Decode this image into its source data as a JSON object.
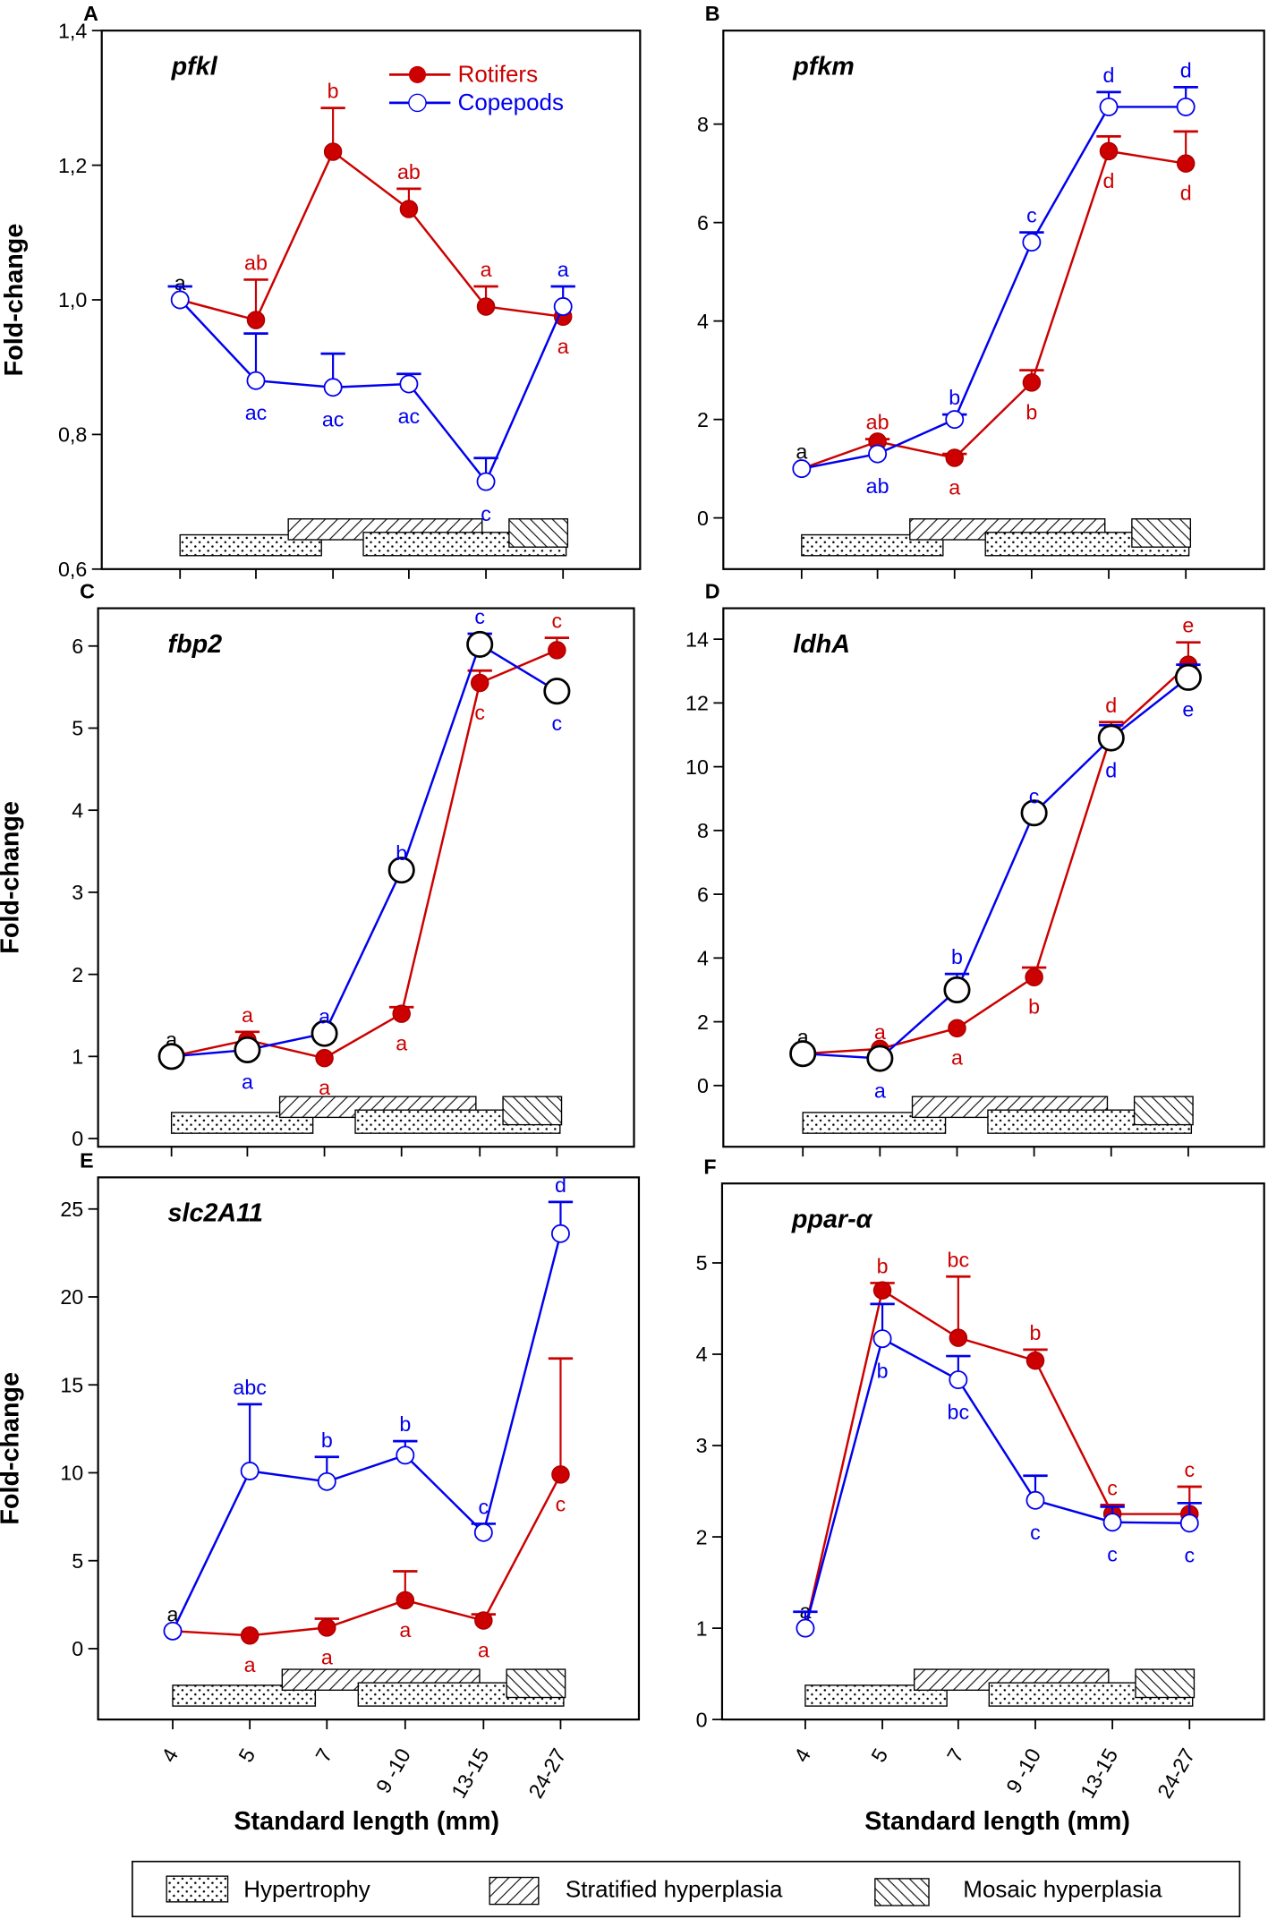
{
  "colors": {
    "rotifers": "#cc0000",
    "copepods": "#0000ee",
    "neutral": "#000000"
  },
  "legend": {
    "rotifers": "Rotifers",
    "copepods": "Copepods"
  },
  "x_axis_label": "Standard length (mm)",
  "y_axis_label": "Fold-change",
  "histology_legend": [
    "Hypertrophy",
    "Stratified hyperplasia",
    "Mosaic hyperplasia"
  ],
  "chart_data": [
    {
      "type": "line",
      "panel": "A",
      "title": "pfkl",
      "categories": [
        "4",
        "5",
        "7",
        "9 -10",
        "13-15",
        "24-27"
      ],
      "ylim": [
        0.6,
        1.4
      ],
      "yticks": [
        0.6,
        0.8,
        1.0,
        1.2,
        1.4
      ],
      "ytick_labels": [
        "0,6",
        "0,8",
        "1,0",
        "1,2",
        "1,4"
      ],
      "show_y_label": true,
      "show_x_labels": false,
      "legend": "top-right",
      "copepod_marker": "open-blue",
      "series": [
        {
          "name": "Rotifers",
          "values": [
            1.0,
            0.97,
            1.22,
            1.135,
            0.99,
            0.975
          ],
          "err_top": [
            null,
            1.03,
            1.285,
            1.165,
            1.02,
            null
          ],
          "letters": [
            "a",
            "ab",
            "b",
            "ab",
            "a",
            "a"
          ]
        },
        {
          "name": "Copepods",
          "values": [
            1.0,
            0.88,
            0.87,
            0.875,
            0.73,
            0.99
          ],
          "err_top": [
            1.02,
            0.95,
            0.92,
            0.89,
            0.765,
            1.02
          ],
          "letters": [
            "",
            "ac",
            "ac",
            "ac",
            "c",
            "a"
          ]
        }
      ]
    },
    {
      "type": "line",
      "panel": "B",
      "title": "pfkm",
      "categories": [
        "4",
        "5",
        "7",
        "9 -10",
        "13-15",
        "24-27"
      ],
      "ylim": [
        -1.04,
        9.9
      ],
      "yticks": [
        0,
        2,
        4,
        6,
        8
      ],
      "ytick_labels": [
        "0",
        "2",
        "4",
        "6",
        "8"
      ],
      "show_y_label": false,
      "show_x_labels": false,
      "copepod_marker": "open-blue",
      "series": [
        {
          "name": "Rotifers",
          "values": [
            1.0,
            1.55,
            1.22,
            2.75,
            7.45,
            7.2
          ],
          "err_top": [
            null,
            1.6,
            1.3,
            3.0,
            7.75,
            7.85
          ],
          "letters": [
            "a",
            "ab",
            "a",
            "b",
            "d",
            "d"
          ]
        },
        {
          "name": "Copepods",
          "values": [
            1.0,
            1.3,
            2.0,
            5.6,
            8.35,
            8.35
          ],
          "err_top": [
            null,
            null,
            2.1,
            5.8,
            8.65,
            8.75
          ],
          "letters": [
            "",
            "ab",
            "b",
            "c",
            "d",
            "d"
          ]
        }
      ]
    },
    {
      "type": "line",
      "panel": "C",
      "title": "fbp2",
      "categories": [
        "4",
        "5",
        "7",
        "9 -10",
        "13-15",
        "24-27"
      ],
      "ylim": [
        -0.1,
        6.46
      ],
      "yticks": [
        0,
        1,
        2,
        3,
        4,
        5,
        6
      ],
      "ytick_labels": [
        "0",
        "1",
        "2",
        "3",
        "4",
        "5",
        "6"
      ],
      "show_y_label": true,
      "show_x_labels": false,
      "copepod_marker": "open-black",
      "series": [
        {
          "name": "Rotifers",
          "values": [
            1.0,
            1.2,
            0.98,
            1.52,
            5.55,
            5.95
          ],
          "err_top": [
            null,
            1.3,
            null,
            1.6,
            5.7,
            6.1
          ],
          "letters": [
            "a",
            "a",
            "a",
            "a",
            "c",
            "c"
          ]
        },
        {
          "name": "Copepods",
          "values": [
            1.0,
            1.08,
            1.28,
            3.27,
            6.02,
            5.45
          ],
          "err_top": [
            null,
            null,
            null,
            null,
            6.15,
            null
          ],
          "letters": [
            "",
            "a",
            "a",
            "b",
            "c",
            "c"
          ]
        }
      ]
    },
    {
      "type": "line",
      "panel": "D",
      "title": "ldhA",
      "categories": [
        "4",
        "5",
        "7",
        "9 -10",
        "13-15",
        "24-27"
      ],
      "ylim": [
        -1.92,
        14.97
      ],
      "yticks": [
        0,
        2,
        4,
        6,
        8,
        10,
        12,
        14
      ],
      "ytick_labels": [
        "0",
        "2",
        "4",
        "6",
        "8",
        "10",
        "12",
        "14"
      ],
      "show_y_label": false,
      "show_x_labels": false,
      "copepod_marker": "open-black",
      "series": [
        {
          "name": "Rotifers",
          "values": [
            1.0,
            1.15,
            1.8,
            3.4,
            11.0,
            13.2
          ],
          "err_top": [
            null,
            null,
            null,
            3.7,
            11.4,
            13.9
          ],
          "letters": [
            "a",
            "a",
            "a",
            "b",
            "d",
            "e"
          ]
        },
        {
          "name": "Copepods",
          "values": [
            1.0,
            0.85,
            3.0,
            8.55,
            10.9,
            12.8
          ],
          "err_top": [
            null,
            null,
            3.5,
            null,
            11.3,
            13.2
          ],
          "letters": [
            "",
            "a",
            "b",
            "c",
            "d",
            "e"
          ]
        }
      ]
    },
    {
      "type": "line",
      "panel": "E",
      "title": "slc2A11",
      "categories": [
        "4",
        "5",
        "7",
        "9 -10",
        "13-15",
        "24-27"
      ],
      "ylim": [
        -4.03,
        26.8
      ],
      "yticks": [
        0,
        5,
        10,
        15,
        20,
        25
      ],
      "ytick_labels": [
        "0",
        "5",
        "10",
        "15",
        "20",
        "25"
      ],
      "show_y_label": true,
      "show_x_labels": true,
      "copepod_marker": "open-blue",
      "series": [
        {
          "name": "Rotifers",
          "values": [
            1.0,
            0.75,
            1.2,
            2.75,
            1.6,
            9.9
          ],
          "err_top": [
            null,
            null,
            1.7,
            4.4,
            1.95,
            16.5
          ],
          "letters": [
            "a",
            "a",
            "a",
            "a",
            "a",
            "c"
          ]
        },
        {
          "name": "Copepods",
          "values": [
            1.0,
            10.1,
            9.5,
            11.0,
            6.6,
            23.6
          ],
          "err_top": [
            null,
            13.9,
            10.9,
            11.8,
            7.1,
            25.4
          ],
          "letters": [
            "",
            "abc",
            "b",
            "b",
            "c",
            "d"
          ]
        }
      ]
    },
    {
      "type": "line",
      "panel": "F",
      "title": "ppar-α",
      "categories": [
        "4",
        "5",
        "7",
        "9 -10",
        "13-15",
        "24-27"
      ],
      "ylim": [
        0,
        5.87
      ],
      "yticks": [
        0,
        1,
        2,
        3,
        4,
        5
      ],
      "ytick_labels": [
        "0",
        "1",
        "2",
        "3",
        "4",
        "5"
      ],
      "show_y_label": false,
      "show_x_labels": true,
      "copepod_marker": "open-blue",
      "series": [
        {
          "name": "Rotifers",
          "values": [
            1.0,
            4.7,
            4.18,
            3.93,
            2.25,
            2.25
          ],
          "err_top": [
            null,
            4.78,
            4.85,
            4.05,
            2.35,
            2.55
          ],
          "letters": [
            "a",
            "b",
            "bc",
            "b",
            "c",
            "c"
          ]
        },
        {
          "name": "Copepods",
          "values": [
            1.0,
            4.17,
            3.72,
            2.4,
            2.16,
            2.15
          ],
          "err_top": [
            1.18,
            4.55,
            3.98,
            2.67,
            2.33,
            2.37
          ],
          "letters": [
            "",
            "b",
            "bc",
            "c",
            "c",
            "c"
          ]
        }
      ]
    }
  ]
}
